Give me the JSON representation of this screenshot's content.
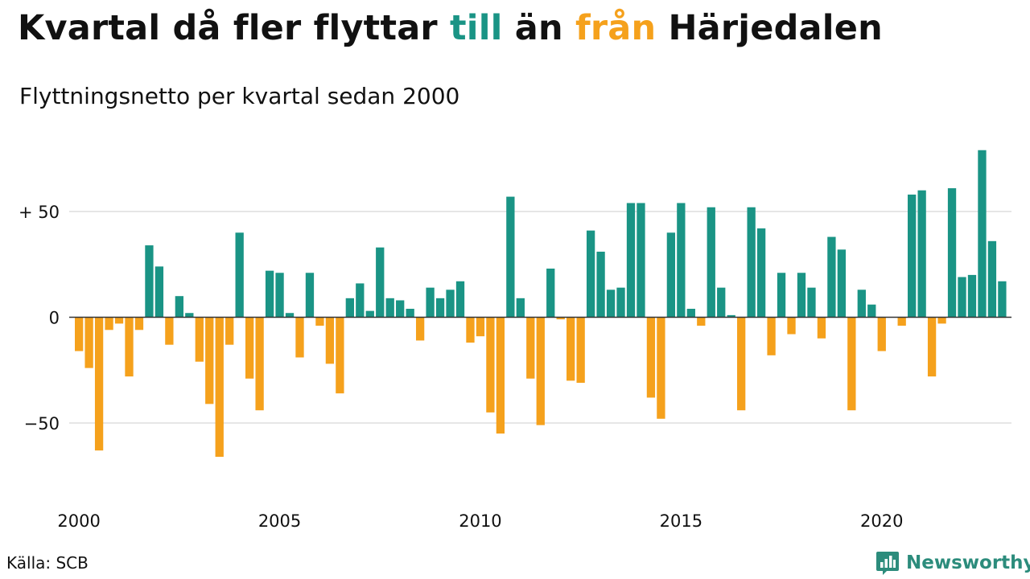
{
  "title": {
    "part1": "Kvartal då fler flyttar ",
    "till": "till",
    "part2": " än ",
    "fran": "från",
    "part3": " Härjedalen"
  },
  "subtitle": "Flyttningsnetto per kvartal sedan 2000",
  "source": "Källa: SCB",
  "brand": "Newsworthy",
  "colors": {
    "positive": "#1a9485",
    "negative": "#f5a11c",
    "grid": "#dddddd",
    "axis": "#333333",
    "text": "#111111"
  },
  "chart_data": {
    "type": "bar",
    "xlabel": "",
    "ylabel": "",
    "ylim": [
      -75,
      85
    ],
    "yticks": [
      {
        "value": 50,
        "label": "+ 50"
      },
      {
        "value": 0,
        "label": "0"
      },
      {
        "value": -50,
        "label": "−50"
      }
    ],
    "xticks": [
      {
        "year": 2000,
        "label": "2000"
      },
      {
        "year": 2005,
        "label": "2005"
      },
      {
        "year": 2010,
        "label": "2010"
      },
      {
        "year": 2015,
        "label": "2015"
      },
      {
        "year": 2020,
        "label": "2020"
      }
    ],
    "grid": true,
    "start": "2000 Q1",
    "categories": [
      "2000 Q1",
      "2000 Q2",
      "2000 Q3",
      "2000 Q4",
      "2001 Q1",
      "2001 Q2",
      "2001 Q3",
      "2001 Q4",
      "2002 Q1",
      "2002 Q2",
      "2002 Q3",
      "2002 Q4",
      "2003 Q1",
      "2003 Q2",
      "2003 Q3",
      "2003 Q4",
      "2004 Q1",
      "2004 Q2",
      "2004 Q3",
      "2004 Q4",
      "2005 Q1",
      "2005 Q2",
      "2005 Q3",
      "2005 Q4",
      "2006 Q1",
      "2006 Q2",
      "2006 Q3",
      "2006 Q4",
      "2007 Q1",
      "2007 Q2",
      "2007 Q3",
      "2007 Q4",
      "2008 Q1",
      "2008 Q2",
      "2008 Q3",
      "2008 Q4",
      "2009 Q1",
      "2009 Q2",
      "2009 Q3",
      "2009 Q4",
      "2010 Q1",
      "2010 Q2",
      "2010 Q3",
      "2010 Q4",
      "2011 Q1",
      "2011 Q2",
      "2011 Q3",
      "2011 Q4",
      "2012 Q1",
      "2012 Q2",
      "2012 Q3",
      "2012 Q4",
      "2013 Q1",
      "2013 Q2",
      "2013 Q3",
      "2013 Q4",
      "2014 Q1",
      "2014 Q2",
      "2014 Q3",
      "2014 Q4",
      "2015 Q1",
      "2015 Q2",
      "2015 Q3",
      "2015 Q4",
      "2016 Q1",
      "2016 Q2",
      "2016 Q3",
      "2016 Q4",
      "2017 Q1",
      "2017 Q2",
      "2017 Q3",
      "2017 Q4",
      "2018 Q1",
      "2018 Q2",
      "2018 Q3",
      "2018 Q4",
      "2019 Q1",
      "2019 Q2",
      "2019 Q3",
      "2019 Q4",
      "2020 Q1",
      "2020 Q2",
      "2020 Q3",
      "2020 Q4",
      "2021 Q1",
      "2021 Q2",
      "2021 Q3",
      "2021 Q4",
      "2022 Q1",
      "2022 Q2",
      "2022 Q3",
      "2022 Q4",
      "2023 Q1",
      "2023 Q2",
      "2023 Q3",
      "2023 Q4"
    ],
    "values": [
      -16,
      -24,
      -63,
      -6,
      -3,
      -28,
      -6,
      34,
      24,
      -13,
      10,
      2,
      -21,
      -41,
      -66,
      -13,
      40,
      -29,
      -44,
      22,
      21,
      2,
      -19,
      21,
      -4,
      -22,
      -36,
      9,
      16,
      3,
      33,
      9,
      8,
      4,
      -11,
      14,
      9,
      13,
      17,
      -12,
      -9,
      -45,
      -55,
      57,
      9,
      -29,
      -51,
      23,
      -1,
      -30,
      -31,
      41,
      31,
      13,
      14,
      54,
      54,
      -38,
      -48,
      40,
      54,
      4,
      -4,
      52,
      14,
      1,
      -44,
      52,
      42,
      -18,
      21,
      -8,
      21,
      14,
      -10,
      38,
      32,
      -44,
      13,
      6,
      -16,
      0,
      -4,
      58,
      60,
      -28,
      -3,
      61,
      19,
      20,
      79,
      36,
      17,
      0,
      0,
      0
    ],
    "visible_count": 93
  }
}
